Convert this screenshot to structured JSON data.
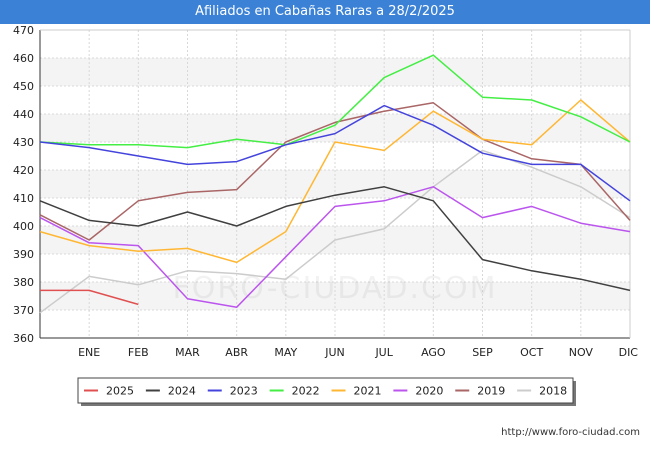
{
  "header": {
    "title": "Afiliados en Cabañas Raras a 28/2/2025"
  },
  "footer": {
    "url": "http://www.foro-ciudad.com"
  },
  "watermark": "FORO-CIUDAD.COM",
  "chart_data": {
    "type": "line",
    "title": "Afiliados en Cabañas Raras a 28/2/2025",
    "xlabel": "",
    "ylabel": "",
    "categories": [
      "",
      "ENE",
      "FEB",
      "MAR",
      "ABR",
      "MAY",
      "JUN",
      "JUL",
      "AGO",
      "SEP",
      "OCT",
      "NOV",
      "DIC"
    ],
    "ylim": [
      360,
      470
    ],
    "yticks": [
      360,
      370,
      380,
      390,
      400,
      410,
      420,
      430,
      440,
      450,
      460,
      470
    ],
    "grid": true,
    "legend_position": "bottom",
    "series": [
      {
        "name": "2025",
        "color": "#e05050",
        "values": [
          377,
          377,
          372,
          null,
          null,
          null,
          null,
          null,
          null,
          null,
          null,
          null,
          null
        ]
      },
      {
        "name": "2024",
        "color": "#404040",
        "values": [
          409,
          402,
          400,
          405,
          400,
          407,
          411,
          414,
          409,
          388,
          384,
          381,
          377
        ]
      },
      {
        "name": "2023",
        "color": "#4444dd",
        "values": [
          430,
          428,
          425,
          422,
          423,
          429,
          433,
          443,
          436,
          426,
          422,
          422,
          409
        ]
      },
      {
        "name": "2022",
        "color": "#44ee44",
        "values": [
          430,
          429,
          429,
          428,
          431,
          429,
          436,
          453,
          461,
          446,
          445,
          439,
          430
        ]
      },
      {
        "name": "2021",
        "color": "#ffb733",
        "values": [
          398,
          393,
          391,
          392,
          387,
          398,
          430,
          427,
          441,
          431,
          429,
          445,
          430
        ]
      },
      {
        "name": "2020",
        "color": "#bb55ee",
        "values": [
          403,
          394,
          393,
          374,
          371,
          389,
          407,
          409,
          414,
          403,
          407,
          401,
          398
        ]
      },
      {
        "name": "2019",
        "color": "#aa6666",
        "values": [
          404,
          395,
          409,
          412,
          413,
          430,
          437,
          441,
          444,
          431,
          424,
          422,
          402
        ]
      },
      {
        "name": "2018",
        "color": "#cccccc",
        "values": [
          369,
          382,
          379,
          384,
          383,
          381,
          395,
          399,
          414,
          427,
          421,
          414,
          403
        ]
      }
    ]
  }
}
